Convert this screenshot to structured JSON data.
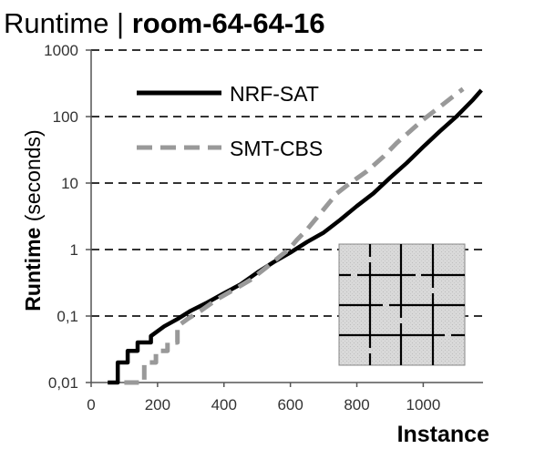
{
  "chart_data": {
    "type": "line",
    "title_prefix": "Runtime | ",
    "title_bold": "room-64-64-16",
    "xlabel": "Instance",
    "ylabel_bold": "Runtime",
    "ylabel_rest": " (seconds)",
    "xlim": [
      0,
      1180
    ],
    "ylim": [
      0.01,
      1000
    ],
    "yscale": "log",
    "x_ticks": [
      0,
      200,
      400,
      600,
      800,
      1000
    ],
    "x_tick_labels": [
      "0",
      "200",
      "400",
      "600",
      "800",
      "1000"
    ],
    "y_ticks": [
      0.01,
      0.1,
      1,
      10,
      100,
      1000
    ],
    "y_tick_labels": [
      "0,01",
      "0,1",
      "1",
      "10",
      "100",
      "1000"
    ],
    "grid": "horizontal-dashed",
    "legend_position": "top-left",
    "series": [
      {
        "name": "NRF-SAT",
        "color": "#000000",
        "style": "solid",
        "x": [
          50,
          80,
          80,
          110,
          110,
          140,
          140,
          180,
          180,
          220,
          260,
          300,
          350,
          400,
          450,
          500,
          550,
          600,
          650,
          700,
          750,
          800,
          850,
          900,
          950,
          1000,
          1050,
          1100,
          1150,
          1175
        ],
        "y": [
          0.01,
          0.01,
          0.02,
          0.02,
          0.03,
          0.03,
          0.04,
          0.04,
          0.05,
          0.07,
          0.09,
          0.12,
          0.16,
          0.22,
          0.3,
          0.45,
          0.65,
          0.9,
          1.3,
          1.8,
          2.8,
          4.5,
          7,
          12,
          20,
          35,
          60,
          100,
          180,
          250
        ]
      },
      {
        "name": "SMT-CBS",
        "color": "#999999",
        "style": "dashed",
        "x": [
          100,
          160,
          160,
          195,
          195,
          230,
          230,
          260,
          260,
          290,
          330,
          380,
          430,
          480,
          530,
          570,
          595,
          620,
          650,
          700,
          740,
          780,
          830,
          880,
          920,
          960,
          1000,
          1050,
          1100,
          1120
        ],
        "y": [
          0.01,
          0.01,
          0.02,
          0.02,
          0.03,
          0.03,
          0.04,
          0.04,
          0.07,
          0.09,
          0.12,
          0.18,
          0.25,
          0.35,
          0.55,
          0.8,
          1.0,
          1.4,
          2.0,
          4,
          7,
          10,
          15,
          25,
          40,
          60,
          90,
          140,
          220,
          260
        ]
      }
    ]
  }
}
